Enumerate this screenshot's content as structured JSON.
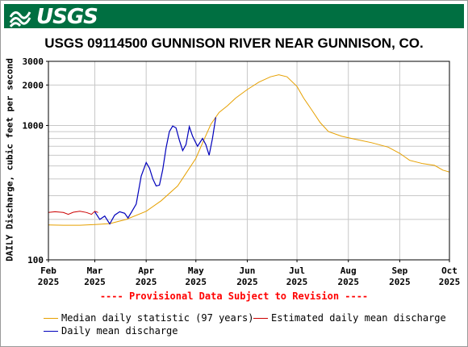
{
  "header": {
    "logo_text": "USGS",
    "background_color": "#006f41"
  },
  "chart_data": {
    "type": "line",
    "title": "USGS 09114500 GUNNISON RIVER NEAR GUNNISON, CO.",
    "ylabel": "DAILY Discharge, cubic feet per second",
    "xlabel": "",
    "y_scale": "log",
    "ylim": [
      100,
      3000
    ],
    "y_ticks": [
      {
        "value": 100,
        "label": "100"
      },
      {
        "value": 1000,
        "label": "1000"
      },
      {
        "value": 2000,
        "label": "2000"
      },
      {
        "value": 3000,
        "label": "3000"
      }
    ],
    "y_minor_gridlines": [
      200,
      300,
      400,
      500,
      600,
      700,
      800,
      900
    ],
    "xlim": [
      "2025-02-01",
      "2025-10-01"
    ],
    "x_ticks": [
      {
        "date": "2025-02-01",
        "label": [
          "Feb",
          "2025"
        ]
      },
      {
        "date": "2025-03-01",
        "label": [
          "Mar",
          "2025"
        ]
      },
      {
        "date": "2025-04-01",
        "label": [
          "Apr",
          "2025"
        ]
      },
      {
        "date": "2025-05-01",
        "label": [
          "May",
          "2025"
        ]
      },
      {
        "date": "2025-06-01",
        "label": [
          "Jun",
          "2025"
        ]
      },
      {
        "date": "2025-07-01",
        "label": [
          "Jul",
          "2025"
        ]
      },
      {
        "date": "2025-08-01",
        "label": [
          "Aug",
          "2025"
        ]
      },
      {
        "date": "2025-09-01",
        "label": [
          "Sep",
          "2025"
        ]
      },
      {
        "date": "2025-10-01",
        "label": [
          "Oct",
          "2025"
        ]
      }
    ],
    "grid": true,
    "series": [
      {
        "name": "Median daily statistic (97 years)",
        "color": "#e6a000",
        "points": [
          [
            "2025-02-01",
            182
          ],
          [
            "2025-02-10",
            181
          ],
          [
            "2025-02-20",
            181
          ],
          [
            "2025-03-01",
            183
          ],
          [
            "2025-03-10",
            186
          ],
          [
            "2025-03-20",
            200
          ],
          [
            "2025-04-01",
            230
          ],
          [
            "2025-04-10",
            275
          ],
          [
            "2025-04-20",
            355
          ],
          [
            "2025-04-25",
            440
          ],
          [
            "2025-05-01",
            570
          ],
          [
            "2025-05-05",
            740
          ],
          [
            "2025-05-10",
            1020
          ],
          [
            "2025-05-15",
            1250
          ],
          [
            "2025-05-20",
            1400
          ],
          [
            "2025-05-25",
            1600
          ],
          [
            "2025-06-01",
            1850
          ],
          [
            "2025-06-08",
            2100
          ],
          [
            "2025-06-15",
            2300
          ],
          [
            "2025-06-20",
            2380
          ],
          [
            "2025-06-25",
            2300
          ],
          [
            "2025-07-01",
            1950
          ],
          [
            "2025-07-05",
            1600
          ],
          [
            "2025-07-10",
            1300
          ],
          [
            "2025-07-15",
            1050
          ],
          [
            "2025-07-20",
            900
          ],
          [
            "2025-07-28",
            830
          ],
          [
            "2025-08-05",
            790
          ],
          [
            "2025-08-15",
            745
          ],
          [
            "2025-08-25",
            690
          ],
          [
            "2025-09-01",
            620
          ],
          [
            "2025-09-07",
            550
          ],
          [
            "2025-09-15",
            520
          ],
          [
            "2025-09-22",
            505
          ],
          [
            "2025-09-27",
            465
          ],
          [
            "2025-10-01",
            450
          ]
        ]
      },
      {
        "name": "Estimated daily mean discharge",
        "color": "#cc0000",
        "points": [
          [
            "2025-02-01",
            225
          ],
          [
            "2025-02-05",
            228
          ],
          [
            "2025-02-10",
            225
          ],
          [
            "2025-02-13",
            218
          ],
          [
            "2025-02-16",
            226
          ],
          [
            "2025-02-20",
            230
          ],
          [
            "2025-02-24",
            225
          ],
          [
            "2025-02-27",
            218
          ],
          [
            "2025-03-01",
            230
          ],
          [
            "2025-03-03",
            225
          ]
        ]
      },
      {
        "name": "Daily mean discharge",
        "color": "#0000bb",
        "points": [
          [
            "2025-03-01",
            228
          ],
          [
            "2025-03-04",
            200
          ],
          [
            "2025-03-07",
            212
          ],
          [
            "2025-03-10",
            185
          ],
          [
            "2025-03-13",
            215
          ],
          [
            "2025-03-16",
            228
          ],
          [
            "2025-03-19",
            222
          ],
          [
            "2025-03-21",
            205
          ],
          [
            "2025-03-23",
            225
          ],
          [
            "2025-03-26",
            260
          ],
          [
            "2025-03-29",
            420
          ],
          [
            "2025-04-01",
            530
          ],
          [
            "2025-04-03",
            480
          ],
          [
            "2025-04-05",
            400
          ],
          [
            "2025-04-07",
            355
          ],
          [
            "2025-04-09",
            360
          ],
          [
            "2025-04-11",
            470
          ],
          [
            "2025-04-13",
            680
          ],
          [
            "2025-04-15",
            900
          ],
          [
            "2025-04-17",
            990
          ],
          [
            "2025-04-19",
            960
          ],
          [
            "2025-04-21",
            780
          ],
          [
            "2025-04-23",
            650
          ],
          [
            "2025-04-25",
            720
          ],
          [
            "2025-04-27",
            980
          ],
          [
            "2025-04-29",
            830
          ],
          [
            "2025-05-02",
            700
          ],
          [
            "2025-05-05",
            800
          ],
          [
            "2025-05-07",
            720
          ],
          [
            "2025-05-09",
            600
          ],
          [
            "2025-05-11",
            800
          ],
          [
            "2025-05-13",
            1150
          ]
        ]
      }
    ]
  },
  "provisional_note": "---- Provisional Data Subject to Revision ----",
  "legend": {
    "items": [
      {
        "label": "Median daily statistic (97 years)",
        "color": "#e6a000"
      },
      {
        "label": "Estimated daily mean discharge",
        "color": "#cc0000"
      },
      {
        "label": "Daily mean discharge",
        "color": "#0000bb"
      }
    ]
  }
}
